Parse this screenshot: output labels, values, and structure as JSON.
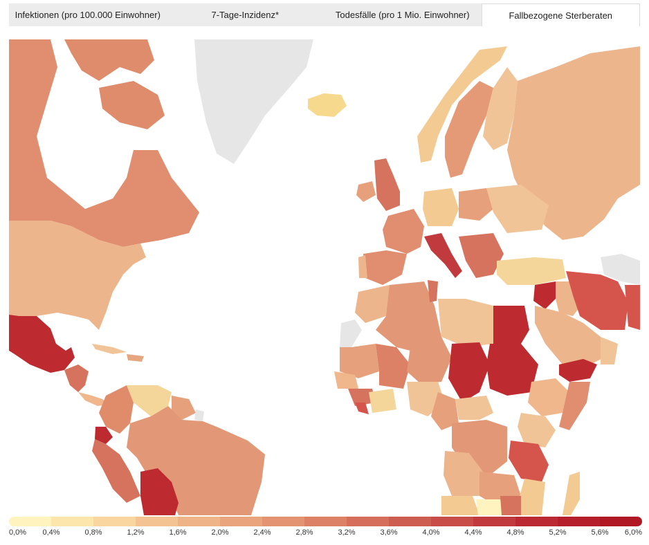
{
  "tabs": [
    {
      "label": "Infektionen (pro 100.000 Einwohner)",
      "active": false
    },
    {
      "label": "7-Tage-Inzidenz*",
      "active": false
    },
    {
      "label": "Todesfälle (pro 1 Mio. Einwohner)",
      "active": false
    },
    {
      "label": "Fallbezogene Sterberaten",
      "active": true
    }
  ],
  "legend": {
    "ticks": [
      "0,0%",
      "0,4%",
      "0,8%",
      "1,2%",
      "1,6%",
      "2,0%",
      "2,4%",
      "2,8%",
      "3,2%",
      "3,6%",
      "4,0%",
      "4,4%",
      "4,8%",
      "5,2%",
      "5,6%",
      "6,0%"
    ],
    "colors": [
      "#fff4c0",
      "#fde6ac",
      "#f9d6a0",
      "#f3c393",
      "#eeb488",
      "#e9a47d",
      "#e39272",
      "#dc8066",
      "#d56f5b",
      "#ce5d51",
      "#c84c47",
      "#c13a3d",
      "#bb2a33",
      "#b51f2b",
      "#b01824"
    ]
  },
  "colors": {
    "no_data": "#e6e6e6",
    "ocean": "#ffffff"
  }
}
